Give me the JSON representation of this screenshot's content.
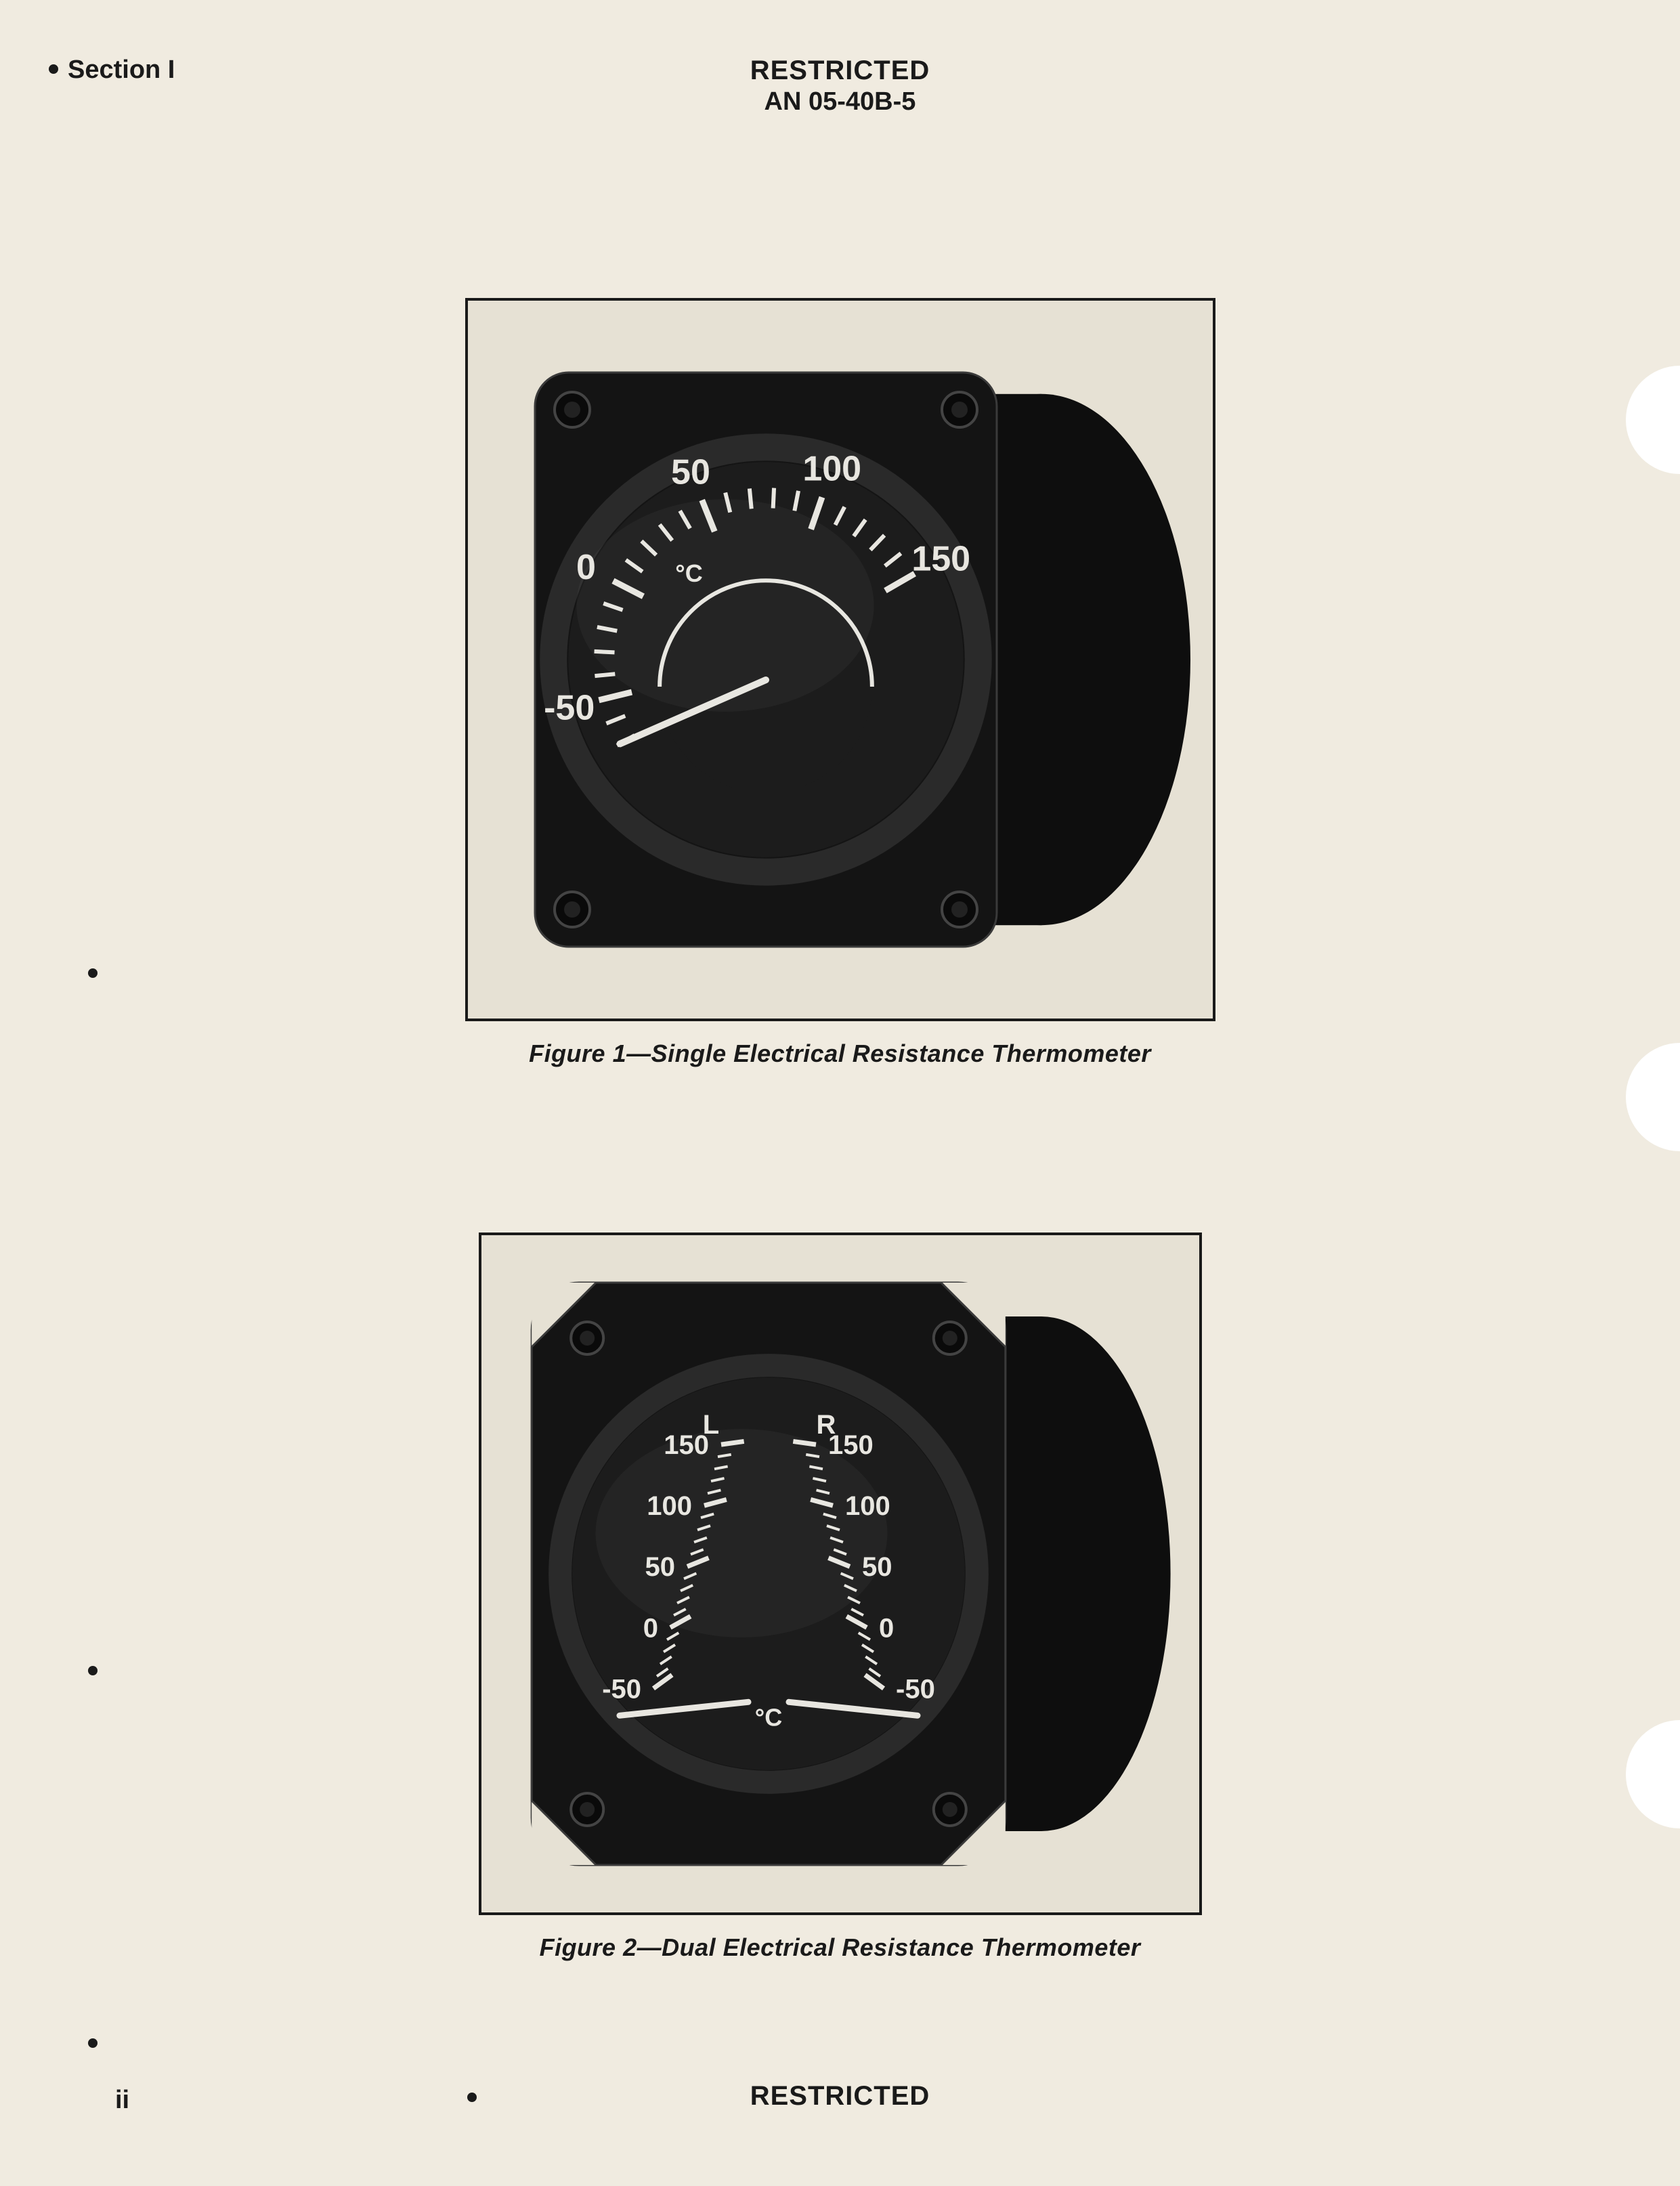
{
  "header": {
    "section": "Section I",
    "restricted": "RESTRICTED",
    "doc_number": "AN 05-40B-5"
  },
  "figure1": {
    "caption": "Figure 1—Single Electrical Resistance Thermometer",
    "frame_width": 1100,
    "frame_height": 1060,
    "scale": {
      "unit": "°C",
      "labels": [
        "-50",
        "0",
        "50",
        "100",
        "150"
      ],
      "min": -70,
      "max": 150,
      "major_step": 50,
      "minor_step": 10,
      "start_angle": -120,
      "end_angle": 60
    },
    "colors": {
      "body": "#141414",
      "face": "#1c1c1c",
      "marks": "#e8e6e0",
      "bezel": "#2a2a2a"
    }
  },
  "figure2": {
    "caption": "Figure 2—Dual Electrical Resistance Thermometer",
    "frame_width": 1060,
    "frame_height": 1000,
    "left_scale": {
      "header": "L",
      "labels": [
        "150",
        "100",
        "50",
        "0",
        "-50"
      ]
    },
    "right_scale": {
      "header": "R",
      "labels": [
        "150",
        "100",
        "50",
        "0",
        "-50"
      ]
    },
    "unit": "°C",
    "colors": {
      "body": "#141414",
      "face": "#1c1c1c",
      "marks": "#e8e6e0",
      "bezel": "#2a2a2a"
    }
  },
  "footer": {
    "restricted": "RESTRICTED",
    "page": "ii"
  },
  "page_bg": "#f0ebe0"
}
